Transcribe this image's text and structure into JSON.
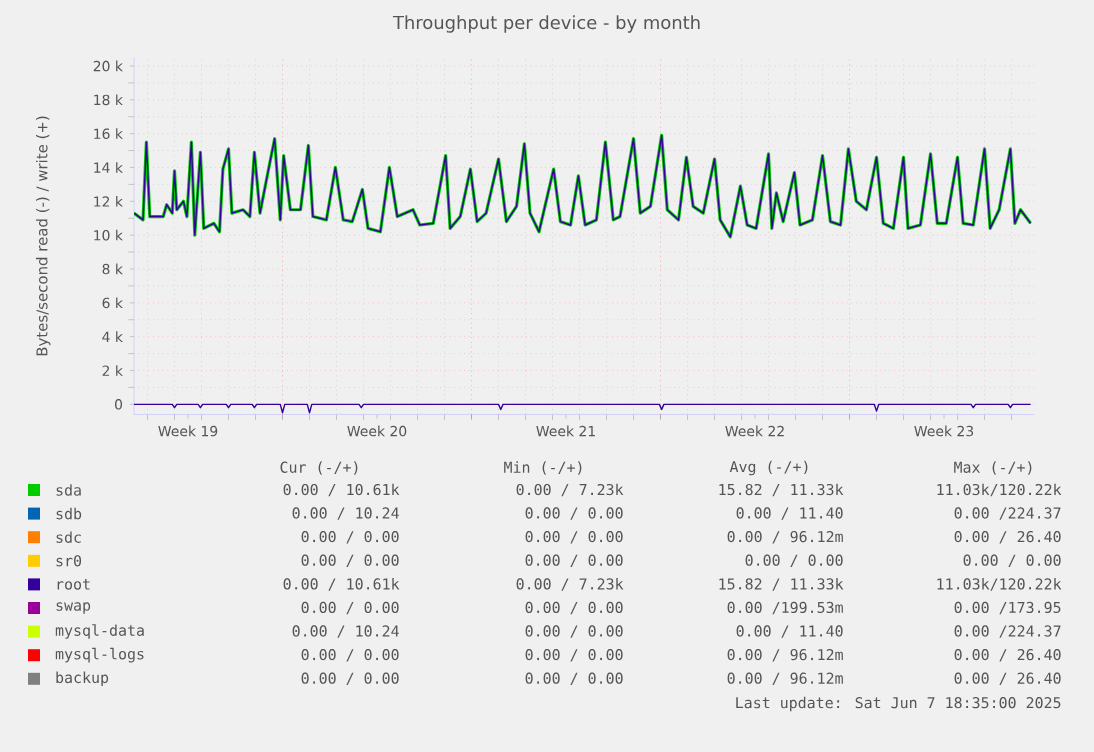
{
  "chart_data": {
    "type": "line",
    "title": "Throughput per device - by month",
    "ylabel": "Bytes/second read (-) / write (+)",
    "x": [
      "2025-05-06T12:00",
      "2025-05-06T20:00",
      "2025-05-06T23:00",
      "2025-05-07T02:00",
      "2025-05-07T14:00",
      "2025-05-07T17:00",
      "2025-05-07T22:00",
      "2025-05-08T00:00",
      "2025-05-08T02:00",
      "2025-05-08T08:00",
      "2025-05-08T11:00",
      "2025-05-08T15:00",
      "2025-05-08T18:00",
      "2025-05-08T23:00",
      "2025-05-09T02:00",
      "2025-05-09T11:00",
      "2025-05-09T16:00",
      "2025-05-09T19:00",
      "2025-05-10T00:00",
      "2025-05-10T03:00",
      "2025-05-10T13:00",
      "2025-05-10T19:00",
      "2025-05-10T23:00",
      "2025-05-11T04:00",
      "2025-05-11T11:00",
      "2025-05-11T17:00",
      "2025-05-11T22:00",
      "2025-05-12T01:00",
      "2025-05-12T07:00",
      "2025-05-12T16:00",
      "2025-05-12T23:00",
      "2025-05-13T03:00",
      "2025-05-13T15:00",
      "2025-05-13T23:00",
      "2025-05-14T06:00",
      "2025-05-14T14:00",
      "2025-05-14T23:00",
      "2025-05-15T04:00",
      "2025-05-15T15:00",
      "2025-05-15T23:00",
      "2025-05-16T06:00",
      "2025-05-16T20:00",
      "2025-05-17T02:00",
      "2025-05-17T14:00",
      "2025-05-18T01:00",
      "2025-05-18T05:00",
      "2025-05-18T14:00",
      "2025-05-18T23:00",
      "2025-05-19T05:00",
      "2025-05-19T13:00",
      "2025-05-20T00:00",
      "2025-05-20T07:00",
      "2025-05-20T16:00",
      "2025-05-20T23:00",
      "2025-05-21T04:00",
      "2025-05-21T12:00",
      "2025-05-22T01:00",
      "2025-05-22T07:00",
      "2025-05-22T16:00",
      "2025-05-22T23:00",
      "2025-05-23T05:00",
      "2025-05-23T15:00",
      "2025-05-23T23:00",
      "2025-05-24T06:00",
      "2025-05-24T12:00",
      "2025-05-25T00:00",
      "2025-05-25T06:00",
      "2025-05-25T15:00",
      "2025-05-26T01:00",
      "2025-05-26T06:00",
      "2025-05-26T16:00",
      "2025-05-26T23:00",
      "2025-05-27T05:00",
      "2025-05-27T14:00",
      "2025-05-28T00:00",
      "2025-05-28T05:00",
      "2025-05-28T14:00",
      "2025-05-28T23:00",
      "2025-05-29T05:00",
      "2025-05-29T13:00",
      "2025-05-30T00:00",
      "2025-05-30T03:00",
      "2025-05-30T07:00",
      "2025-05-30T13:00",
      "2025-05-30T23:00",
      "2025-05-31T04:00",
      "2025-05-31T15:00",
      "2025-06-01T00:00",
      "2025-06-01T07:00",
      "2025-06-01T16:00",
      "2025-06-01T23:00",
      "2025-06-02T06:00",
      "2025-06-02T15:00",
      "2025-06-03T00:00",
      "2025-06-03T06:00",
      "2025-06-03T15:00",
      "2025-06-04T00:00",
      "2025-06-04T04:00",
      "2025-06-04T15:00",
      "2025-06-05T00:00",
      "2025-06-05T06:00",
      "2025-06-05T14:00",
      "2025-06-06T00:00",
      "2025-06-06T05:00",
      "2025-06-06T14:00",
      "2025-06-07T00:00",
      "2025-06-07T05:00",
      "2025-06-07T13:00",
      "2025-06-07T23:00",
      "2025-06-08T03:00",
      "2025-06-08T08:00",
      "2025-06-08T17:00"
    ],
    "series": [
      {
        "name": "sda",
        "color": "#00cc00",
        "values": [
          11300,
          10900,
          15500,
          11100,
          11100,
          11800,
          11300,
          13800,
          11500,
          12000,
          11100,
          15500,
          10000,
          14900,
          10400,
          10700,
          10200,
          13900,
          15100,
          11300,
          11500,
          11100,
          14900,
          11300,
          13700,
          15700,
          10900,
          14700,
          11500,
          11500,
          15300,
          11100,
          10900,
          14000,
          10900,
          10800,
          12700,
          10400,
          10200,
          14000,
          11100,
          11500,
          10600,
          10700,
          14700,
          10400,
          11100,
          13900,
          10800,
          11300,
          14500,
          10800,
          11700,
          15400,
          11300,
          10200,
          13900,
          10800,
          10600,
          13500,
          10600,
          10900,
          15500,
          10900,
          11100,
          15700,
          11300,
          11700,
          15900,
          11500,
          10900,
          14600,
          11700,
          11300,
          14500,
          10900,
          9900,
          12900,
          10600,
          10400,
          14800,
          10400,
          12500,
          10800,
          13700,
          10600,
          10900,
          14700,
          10800,
          10600,
          15100,
          12000,
          11500,
          14600,
          10700,
          10400,
          14600,
          10400,
          10600,
          14800,
          10700,
          10700,
          14600,
          10700,
          10600,
          15100,
          10400,
          11500,
          15100,
          10700,
          11500,
          10700
        ]
      },
      {
        "name": "sdb",
        "color": "#0066b3",
        "values": [
          null,
          null,
          null,
          null,
          null,
          null,
          null,
          null,
          null,
          null,
          null,
          null,
          null,
          null,
          null,
          null,
          null,
          null,
          null,
          null,
          null,
          null,
          null,
          null,
          null,
          null,
          null,
          null,
          null,
          null,
          null,
          null,
          null,
          null,
          null,
          null,
          null,
          null,
          null,
          null,
          null,
          null,
          null,
          null,
          null,
          null,
          null,
          null,
          null,
          null,
          null,
          null,
          null,
          null,
          null,
          null,
          null,
          null,
          null,
          null,
          null,
          null,
          null,
          null,
          null,
          null,
          null,
          null,
          null,
          null,
          null,
          null,
          null,
          null,
          null,
          null,
          null,
          null,
          null,
          null,
          null,
          null,
          null,
          null,
          null,
          null,
          null,
          null,
          null,
          null,
          null,
          null,
          null,
          null,
          null,
          null,
          null,
          null,
          null,
          null,
          null,
          null,
          null,
          null,
          null,
          null,
          null,
          null,
          null,
          null,
          null,
          null
        ]
      },
      {
        "name": "sdc",
        "color": "#ff8000",
        "values": [
          null,
          null,
          null,
          null,
          null,
          null,
          null,
          null,
          null,
          null,
          null,
          null,
          null,
          null,
          null,
          null,
          null,
          null,
          null,
          null,
          null,
          null,
          null,
          null,
          null,
          null,
          null,
          null,
          null,
          null,
          null,
          null,
          null,
          null,
          null,
          null,
          null,
          null,
          null,
          null,
          null,
          null,
          null,
          null,
          null,
          null,
          null,
          null,
          null,
          null,
          null,
          null,
          null,
          null,
          null,
          null,
          null,
          null,
          null,
          null,
          null,
          null,
          null,
          null,
          null,
          null,
          null,
          null,
          null,
          null,
          null,
          null,
          null,
          null,
          null,
          null,
          null,
          null,
          null,
          null,
          null,
          null,
          null,
          null,
          null,
          null,
          null,
          null,
          null,
          null,
          null,
          null,
          null,
          null,
          null,
          null,
          null,
          null,
          null,
          null,
          null,
          null,
          null,
          null,
          null,
          null,
          null,
          null,
          null,
          null,
          null,
          null
        ]
      },
      {
        "name": "sr0",
        "color": "#ffcc00",
        "values": [
          null,
          null,
          null,
          null,
          null,
          null,
          null,
          null,
          null,
          null,
          null,
          null,
          null,
          null,
          null,
          null,
          null,
          null,
          null,
          null,
          null,
          null,
          null,
          null,
          null,
          null,
          null,
          null,
          null,
          null,
          null,
          null,
          null,
          null,
          null,
          null,
          null,
          null,
          null,
          null,
          null,
          null,
          null,
          null,
          null,
          null,
          null,
          null,
          null,
          null,
          null,
          null,
          null,
          null,
          null,
          null,
          null,
          null,
          null,
          null,
          null,
          null,
          null,
          null,
          null,
          null,
          null,
          null,
          null,
          null,
          null,
          null,
          null,
          null,
          null,
          null,
          null,
          null,
          null,
          null,
          null,
          null,
          null,
          null,
          null,
          null,
          null,
          null,
          null,
          null,
          null,
          null,
          null,
          null,
          null,
          null,
          null,
          null,
          null,
          null,
          null,
          null,
          null,
          null,
          null,
          null,
          null,
          null,
          null,
          null,
          null,
          null
        ]
      },
      {
        "name": "root",
        "color": "#330099",
        "values": [
          11300,
          10900,
          15500,
          11100,
          11100,
          11800,
          11300,
          13800,
          11500,
          12000,
          11100,
          15500,
          10000,
          14900,
          10400,
          10700,
          10200,
          13900,
          15100,
          11300,
          11500,
          11100,
          14900,
          11300,
          13700,
          15700,
          10900,
          14700,
          11500,
          11500,
          15300,
          11100,
          10900,
          14000,
          10900,
          10800,
          12700,
          10400,
          10200,
          14000,
          11100,
          11500,
          10600,
          10700,
          14700,
          10400,
          11100,
          13900,
          10800,
          11300,
          14500,
          10800,
          11700,
          15400,
          11300,
          10200,
          13900,
          10800,
          10600,
          13500,
          10600,
          10900,
          15500,
          10900,
          11100,
          15700,
          11300,
          11700,
          15900,
          11500,
          10900,
          14600,
          11700,
          11300,
          14500,
          10900,
          9900,
          12900,
          10600,
          10400,
          14800,
          10400,
          12500,
          10800,
          13700,
          10600,
          10900,
          14700,
          10800,
          10600,
          15100,
          12000,
          11500,
          14600,
          10700,
          10400,
          14600,
          10400,
          10600,
          14800,
          10700,
          10700,
          14600,
          10700,
          10600,
          15100,
          10400,
          11500,
          15100,
          10700,
          11500,
          10700
        ]
      },
      {
        "name": "swap",
        "color": "#990099",
        "values": [
          null,
          null,
          null,
          null,
          null,
          null,
          null,
          null,
          null,
          null,
          null,
          null,
          null,
          null,
          null,
          null,
          null,
          null,
          null,
          null,
          null,
          null,
          null,
          null,
          null,
          null,
          null,
          null,
          null,
          null,
          null,
          null,
          null,
          null,
          null,
          null,
          null,
          null,
          null,
          null,
          null,
          null,
          null,
          null,
          null,
          null,
          null,
          null,
          null,
          null,
          null,
          null,
          null,
          null,
          null,
          null,
          null,
          null,
          null,
          null,
          null,
          null,
          null,
          null,
          null,
          null,
          null,
          null,
          null,
          null,
          null,
          null,
          null,
          null,
          null,
          null,
          null,
          null,
          null,
          null,
          null,
          null,
          null,
          null,
          null,
          null,
          null,
          null,
          null,
          null,
          null,
          null,
          null,
          null,
          null,
          null,
          null,
          null,
          null,
          null,
          null,
          null,
          null,
          null,
          null,
          null,
          null,
          null,
          null,
          null,
          null,
          null
        ]
      },
      {
        "name": "mysql-data",
        "color": "#ccff00",
        "values": [
          null,
          null,
          null,
          null,
          null,
          null,
          null,
          null,
          null,
          null,
          null,
          null,
          null,
          null,
          null,
          null,
          null,
          null,
          null,
          null,
          null,
          null,
          null,
          null,
          null,
          null,
          null,
          null,
          null,
          null,
          null,
          null,
          null,
          null,
          null,
          null,
          null,
          null,
          null,
          null,
          null,
          null,
          null,
          null,
          null,
          null,
          null,
          null,
          null,
          null,
          null,
          null,
          null,
          null,
          null,
          null,
          null,
          null,
          null,
          null,
          null,
          null,
          null,
          null,
          null,
          null,
          null,
          null,
          null,
          null,
          null,
          null,
          null,
          null,
          null,
          null,
          null,
          null,
          null,
          null,
          null,
          null,
          null,
          null,
          null,
          null,
          null,
          null,
          null,
          null,
          null,
          null,
          null,
          null,
          null,
          null,
          null,
          null,
          null,
          null,
          null,
          null,
          null,
          null,
          null,
          null,
          null,
          null,
          null,
          null,
          null,
          null
        ]
      },
      {
        "name": "mysql-logs",
        "color": "#ff0000",
        "values": [
          null,
          null,
          null,
          null,
          null,
          null,
          null,
          null,
          null,
          null,
          null,
          null,
          null,
          null,
          null,
          null,
          null,
          null,
          null,
          null,
          null,
          null,
          null,
          null,
          null,
          null,
          null,
          null,
          null,
          null,
          null,
          null,
          null,
          null,
          null,
          null,
          null,
          null,
          null,
          null,
          null,
          null,
          null,
          null,
          null,
          null,
          null,
          null,
          null,
          null,
          null,
          null,
          null,
          null,
          null,
          null,
          null,
          null,
          null,
          null,
          null,
          null,
          null,
          null,
          null,
          null,
          null,
          null,
          null,
          null,
          null,
          null,
          null,
          null,
          null,
          null,
          null,
          null,
          null,
          null,
          null,
          null,
          null,
          null,
          null,
          null,
          null,
          null,
          null,
          null,
          null,
          null,
          null,
          null,
          null,
          null,
          null,
          null,
          null,
          null,
          null,
          null,
          null,
          null,
          null,
          null,
          null,
          null,
          null,
          null,
          null,
          null
        ]
      },
      {
        "name": "backup",
        "color": "#808080",
        "values": [
          null,
          null,
          null,
          null,
          null,
          null,
          null,
          null,
          null,
          null,
          null,
          null,
          null,
          null,
          null,
          null,
          null,
          null,
          null,
          null,
          null,
          null,
          null,
          null,
          null,
          null,
          null,
          null,
          null,
          null,
          null,
          null,
          null,
          null,
          null,
          null,
          null,
          null,
          null,
          null,
          null,
          null,
          null,
          null,
          null,
          null,
          null,
          null,
          null,
          null,
          null,
          null,
          null,
          null,
          null,
          null,
          null,
          null,
          null,
          null,
          null,
          null,
          null,
          null,
          null,
          null,
          null,
          null,
          null,
          null,
          null,
          null,
          null,
          null,
          null,
          null,
          null,
          null,
          null,
          null,
          null,
          null,
          null,
          null,
          null,
          null,
          null,
          null,
          null,
          null,
          null,
          null,
          null,
          null,
          null,
          null,
          null,
          null,
          null,
          null,
          null,
          null,
          null,
          null,
          null,
          null,
          null,
          null,
          null,
          null,
          null,
          null
        ]
      },
      {
        "color": "#330099",
        "x": [
          "2025-05-06T12:00",
          "2025-05-07T22:00",
          "2025-05-08T00:00",
          "2025-05-08T02:00",
          "2025-05-08T21:00",
          "2025-05-08T23:00",
          "2025-05-09T01:00",
          "2025-05-09T22:00",
          "2025-05-10T00:00",
          "2025-05-10T02:00",
          "2025-05-10T21:00",
          "2025-05-10T23:00",
          "2025-05-11T01:00",
          "2025-05-11T22:00",
          "2025-05-12T00:00",
          "2025-05-12T02:00",
          "2025-05-12T22:00",
          "2025-05-13T00:00",
          "2025-05-13T02:00",
          "2025-05-14T20:00",
          "2025-05-14T22:00",
          "2025-05-15T00:00",
          "2025-05-20T00:00",
          "2025-05-20T02:00",
          "2025-05-20T04:00",
          "2025-05-25T23:00",
          "2025-05-26T01:00",
          "2025-05-26T03:00",
          "2025-06-02T22:00",
          "2025-06-03T00:00",
          "2025-06-03T02:00",
          "2025-06-06T12:00",
          "2025-06-06T14:00",
          "2025-06-06T16:00",
          "2025-06-07T21:00",
          "2025-06-07T23:00",
          "2025-06-08T01:00",
          "2025-06-08T17:00"
        ],
        "values": [
          0,
          0,
          -200,
          0,
          0,
          -200,
          0,
          0,
          -200,
          0,
          0,
          -200,
          0,
          0,
          -500,
          0,
          0,
          -500,
          0,
          0,
          -200,
          0,
          0,
          -300,
          0,
          0,
          -300,
          0,
          0,
          -400,
          0,
          0,
          -200,
          0,
          0,
          -200,
          0,
          0
        ]
      }
    ],
    "xlim": [
      "2025-05-06T12:00",
      "2025-06-08T20:00"
    ],
    "xticks": [
      {
        "value": "2025-05-08T12:00",
        "label": "Week 19"
      },
      {
        "value": "2025-05-12",
        "label": null
      },
      {
        "value": "2025-05-15T12:00",
        "label": "Week 20"
      },
      {
        "value": "2025-05-19",
        "label": null
      },
      {
        "value": "2025-05-22T12:00",
        "label": "Week 21"
      },
      {
        "value": "2025-05-26",
        "label": null
      },
      {
        "value": "2025-05-29T12:00",
        "label": "Week 22"
      },
      {
        "value": "2025-06-02",
        "label": null
      },
      {
        "value": "2025-06-05T12:00",
        "label": "Week 23"
      }
    ],
    "ylim": [
      -600,
      20500
    ],
    "yticks": [
      {
        "value": 0,
        "label": "0"
      },
      {
        "value": 2000,
        "label": "2 k"
      },
      {
        "value": 4000,
        "label": "4 k"
      },
      {
        "value": 6000,
        "label": "6 k"
      },
      {
        "value": 8000,
        "label": "8 k"
      },
      {
        "value": 10000,
        "label": "10 k"
      },
      {
        "value": 12000,
        "label": "12 k"
      },
      {
        "value": 14000,
        "label": "14 k"
      },
      {
        "value": 16000,
        "label": "16 k"
      },
      {
        "value": 18000,
        "label": "18 k"
      },
      {
        "value": 20000,
        "label": "20 k"
      }
    ],
    "grid": true,
    "legend": "bottom",
    "annotations": [
      "Cur (-/+)",
      "Min (-/+)",
      "Avg (-/+)",
      "Max (-/+)",
      "0.00 / 10.61k",
      "0.00 / 7.23k",
      "15.82 / 11.33k",
      "11.03k/120.22k",
      "0.00 / 10.24",
      "0.00 / 0.00",
      "0.00 / 11.40",
      "0.00 /224.37",
      "0.00 / 0.00",
      "0.00 / 0.00",
      "0.00 / 96.12m",
      "0.00 / 26.40",
      "0.00 / 0.00",
      "0.00 / 0.00",
      "0.00 / 0.00",
      "0.00 / 0.00",
      "0.00 / 10.61k",
      "0.00 / 7.23k",
      "15.82 / 11.33k",
      "11.03k/120.22k",
      "0.00 / 0.00",
      "0.00 / 0.00",
      "0.00 /199.53m",
      "0.00 /173.95",
      "0.00 / 10.24",
      "0.00 / 0.00",
      "0.00 / 11.40",
      "0.00 /224.37",
      "0.00 / 0.00",
      "0.00 / 0.00",
      "0.00 / 96.12m",
      "0.00 / 26.40",
      "0.00 / 0.00",
      "0.00 / 0.00",
      "0.00 / 96.12m",
      "0.00 / 26.40",
      "Last update: Sat Jun 7 18:35:00 2025"
    ]
  }
}
